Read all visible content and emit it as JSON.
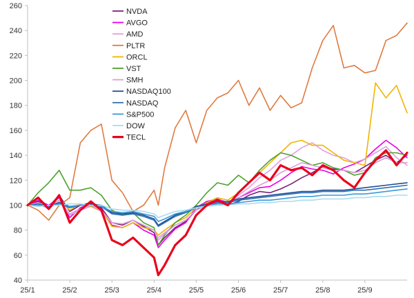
{
  "chart_data": {
    "type": "line",
    "title": "",
    "xlabel": "",
    "ylabel": "",
    "xlim": [
      0,
      9
    ],
    "ylim": [
      40,
      260
    ],
    "yticks": [
      40,
      60,
      80,
      100,
      120,
      140,
      160,
      180,
      200,
      220,
      240,
      260
    ],
    "x_tick_labels": [
      "25/1",
      "25/2",
      "25/3",
      "25/4",
      "25/5",
      "25/6",
      "25/7",
      "25/8",
      "25/9"
    ],
    "grid": false,
    "legend_position": "top-left",
    "x": [
      0,
      0.25,
      0.5,
      0.75,
      1,
      1.25,
      1.5,
      1.75,
      2,
      2.25,
      2.5,
      2.75,
      3,
      3.1,
      3.25,
      3.5,
      3.75,
      4,
      4.25,
      4.5,
      4.75,
      5,
      5.25,
      5.5,
      5.75,
      6,
      6.25,
      6.5,
      6.75,
      7,
      7.25,
      7.5,
      7.75,
      8,
      8.25,
      8.5,
      8.75,
      9
    ],
    "series": [
      {
        "name": "NVDA",
        "color": "#7a1f7a",
        "values": [
          100,
          103,
          99,
          108,
          95,
          100,
          102,
          98,
          86,
          84,
          88,
          83,
          78,
          68,
          74,
          82,
          87,
          96,
          102,
          104,
          100,
          103,
          108,
          111,
          110,
          113,
          117,
          122,
          126,
          131,
          129,
          128,
          126,
          131,
          136,
          140,
          134,
          140
        ]
      },
      {
        "name": "AVGO",
        "color": "#e800e8",
        "values": [
          100,
          104,
          100,
          106,
          90,
          98,
          101,
          97,
          84,
          82,
          86,
          80,
          76,
          66,
          72,
          81,
          86,
          98,
          103,
          105,
          102,
          106,
          110,
          114,
          115,
          120,
          126,
          131,
          129,
          128,
          125,
          130,
          133,
          137,
          145,
          152,
          146,
          138
        ]
      },
      {
        "name": "AMD",
        "color": "#e0a0e0",
        "values": [
          100,
          101,
          97,
          103,
          92,
          96,
          99,
          95,
          86,
          85,
          88,
          84,
          80,
          74,
          78,
          84,
          88,
          96,
          100,
          104,
          102,
          108,
          114,
          122,
          128,
          136,
          140,
          146,
          150,
          144,
          140,
          138,
          134,
          137,
          142,
          147,
          138,
          132
        ]
      },
      {
        "name": "PLTR",
        "color": "#e07a40",
        "values": [
          100,
          96,
          88,
          100,
          106,
          150,
          160,
          165,
          120,
          110,
          95,
          100,
          112,
          100,
          130,
          162,
          176,
          150,
          176,
          186,
          190,
          200,
          180,
          194,
          176,
          188,
          178,
          182,
          210,
          232,
          244,
          210,
          212,
          206,
          208,
          232,
          236,
          246
        ]
      },
      {
        "name": "ORCL",
        "color": "#f0b400",
        "values": [
          100,
          102,
          99,
          104,
          96,
          101,
          99,
          96,
          83,
          82,
          86,
          82,
          80,
          76,
          80,
          86,
          90,
          98,
          102,
          106,
          104,
          110,
          118,
          126,
          134,
          142,
          150,
          152,
          148,
          148,
          142,
          136,
          134,
          132,
          198,
          186,
          196,
          174
        ]
      },
      {
        "name": "VST",
        "color": "#4aa02c",
        "values": [
          100,
          110,
          118,
          128,
          112,
          112,
          114,
          108,
          96,
          92,
          94,
          86,
          82,
          68,
          76,
          86,
          92,
          100,
          110,
          118,
          116,
          124,
          118,
          128,
          136,
          142,
          140,
          136,
          132,
          134,
          130,
          128,
          124,
          126,
          138,
          142,
          142,
          140
        ]
      },
      {
        "name": "SMH",
        "color": "#d8a0d8",
        "values": [
          100,
          102,
          98,
          104,
          93,
          97,
          100,
          96,
          86,
          85,
          88,
          84,
          80,
          72,
          77,
          84,
          88,
          96,
          100,
          103,
          102,
          106,
          111,
          116,
          120,
          126,
          130,
          134,
          132,
          130,
          128,
          128,
          126,
          128,
          134,
          138,
          134,
          134
        ]
      },
      {
        "name": "NASDAQ100",
        "color": "#1f4e96",
        "values": [
          100,
          101,
          99,
          102,
          99,
          100,
          101,
          100,
          94,
          93,
          94,
          92,
          89,
          84,
          87,
          92,
          95,
          99,
          101,
          103,
          103,
          105,
          106,
          107,
          108,
          109,
          110,
          111,
          111,
          112,
          112,
          112,
          113,
          114,
          115,
          116,
          117,
          118
        ]
      },
      {
        "name": "NASDAQ",
        "color": "#2f6fb0",
        "values": [
          100,
          101,
          99,
          101,
          98,
          100,
          100,
          99,
          93,
          92,
          93,
          91,
          88,
          83,
          86,
          91,
          94,
          98,
          100,
          102,
          102,
          104,
          105,
          106,
          107,
          108,
          109,
          110,
          110,
          111,
          111,
          111,
          112,
          112,
          113,
          114,
          115,
          116
        ]
      },
      {
        "name": "S&P500",
        "color": "#3a9ad9",
        "values": [
          100,
          100,
          99,
          101,
          99,
          100,
          100,
          99,
          95,
          94,
          95,
          93,
          91,
          87,
          89,
          93,
          95,
          98,
          100,
          101,
          101,
          102,
          103,
          104,
          104,
          105,
          106,
          107,
          107,
          108,
          108,
          108,
          109,
          109,
          110,
          111,
          112,
          113
        ]
      },
      {
        "name": "DOW",
        "color": "#a8dcf0",
        "values": [
          100,
          99,
          100,
          100,
          101,
          101,
          100,
          100,
          97,
          96,
          96,
          95,
          93,
          90,
          92,
          95,
          96,
          98,
          99,
          100,
          100,
          101,
          101,
          102,
          102,
          103,
          103,
          104,
          104,
          105,
          105,
          105,
          106,
          106,
          107,
          107,
          108,
          108
        ]
      },
      {
        "name": "TECL",
        "color": "#e8001c",
        "values": [
          100,
          106,
          97,
          108,
          86,
          96,
          103,
          96,
          72,
          68,
          74,
          66,
          58,
          44,
          52,
          68,
          76,
          92,
          100,
          104,
          100,
          110,
          118,
          126,
          120,
          132,
          128,
          130,
          124,
          132,
          128,
          120,
          114,
          126,
          136,
          144,
          132,
          142
        ]
      }
    ]
  }
}
